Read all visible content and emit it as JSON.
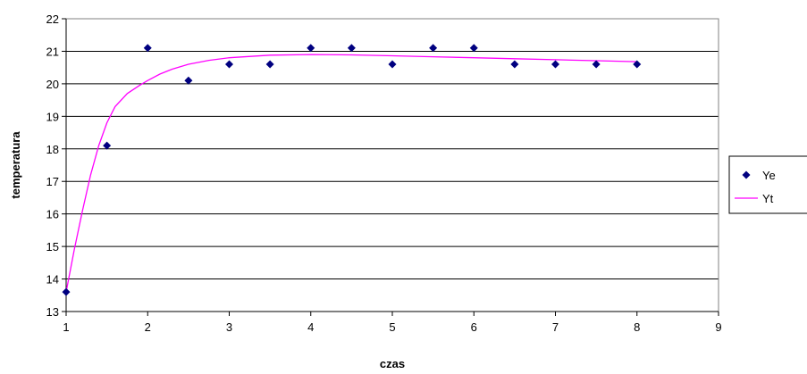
{
  "chart_data": {
    "type": "scatter",
    "xlabel": "czas",
    "ylabel": "temperatura",
    "xlim": [
      1,
      9
    ],
    "ylim": [
      13,
      22
    ],
    "xticks": [
      1,
      2,
      3,
      4,
      5,
      6,
      7,
      8,
      9
    ],
    "yticks": [
      13,
      14,
      15,
      16,
      17,
      18,
      19,
      20,
      21,
      22
    ],
    "grid": "horizontal",
    "legend_position": "right",
    "series": [
      {
        "name": "Ye",
        "kind": "scatter",
        "marker": "diamond",
        "color": "#000080",
        "points": [
          [
            1,
            13.6
          ],
          [
            1.5,
            18.1
          ],
          [
            2,
            21.1
          ],
          [
            2.5,
            20.1
          ],
          [
            3,
            20.6
          ],
          [
            3.5,
            20.6
          ],
          [
            4,
            21.1
          ],
          [
            4.5,
            21.1
          ],
          [
            5,
            20.6
          ],
          [
            5.5,
            21.1
          ],
          [
            6,
            21.1
          ],
          [
            6.5,
            20.6
          ],
          [
            7,
            20.6
          ],
          [
            7.5,
            20.6
          ],
          [
            8,
            20.6
          ]
        ]
      },
      {
        "name": "Yt",
        "kind": "line",
        "color": "#ff00ff",
        "points": [
          [
            1,
            13.6
          ],
          [
            1.1,
            14.9
          ],
          [
            1.2,
            16.1
          ],
          [
            1.3,
            17.2
          ],
          [
            1.4,
            18.1
          ],
          [
            1.5,
            18.8
          ],
          [
            1.6,
            19.3
          ],
          [
            1.75,
            19.7
          ],
          [
            1.9,
            19.95
          ],
          [
            2,
            20.1
          ],
          [
            2.15,
            20.3
          ],
          [
            2.3,
            20.45
          ],
          [
            2.5,
            20.6
          ],
          [
            2.75,
            20.72
          ],
          [
            3,
            20.8
          ],
          [
            3.5,
            20.88
          ],
          [
            4,
            20.9
          ],
          [
            4.5,
            20.89
          ],
          [
            5,
            20.86
          ],
          [
            5.5,
            20.83
          ],
          [
            6,
            20.8
          ],
          [
            6.5,
            20.77
          ],
          [
            7,
            20.74
          ],
          [
            7.5,
            20.71
          ],
          [
            8,
            20.68
          ]
        ]
      }
    ]
  }
}
